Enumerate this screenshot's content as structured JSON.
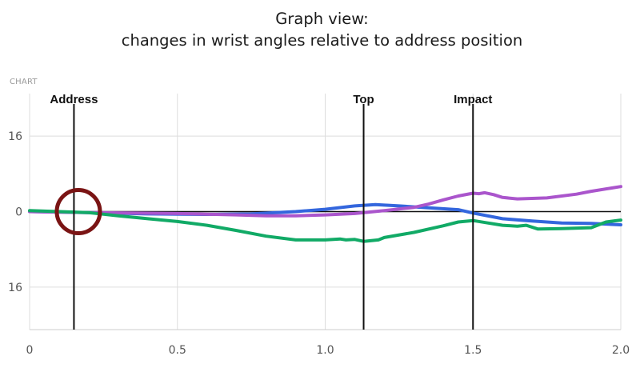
{
  "header": {
    "title_line1": "Graph view:",
    "title_line2": "changes in wrist angles relative to address position"
  },
  "badge": "CHART",
  "chart_data": {
    "type": "line",
    "xlim": [
      0,
      2.0
    ],
    "ylim": [
      -25,
      25
    ],
    "x_ticks": [
      0,
      0.5,
      1.0,
      1.5,
      2.0
    ],
    "x_tick_labels": [
      "0",
      "0.5",
      "1.0",
      "1.5",
      "2.0"
    ],
    "y_ticks": [
      16,
      0,
      -16
    ],
    "y_tick_labels": [
      "16",
      "0",
      "16"
    ],
    "grid": true,
    "markers": [
      {
        "label": "Address",
        "x": 0.15
      },
      {
        "label": "Top",
        "x": 1.13
      },
      {
        "label": "Impact",
        "x": 1.5
      }
    ],
    "highlight_circle": {
      "x": 0.165,
      "y": 0,
      "color": "#7a1414"
    },
    "series": [
      {
        "color": "#3366dd",
        "points": [
          [
            0,
            0
          ],
          [
            0.2,
            -0.2
          ],
          [
            0.4,
            -0.5
          ],
          [
            0.6,
            -0.6
          ],
          [
            0.75,
            -0.5
          ],
          [
            0.9,
            0
          ],
          [
            1.0,
            0.5
          ],
          [
            1.1,
            1.2
          ],
          [
            1.17,
            1.5
          ],
          [
            1.25,
            1.2
          ],
          [
            1.35,
            0.8
          ],
          [
            1.45,
            0.4
          ],
          [
            1.5,
            -0.3
          ],
          [
            1.6,
            -1.5
          ],
          [
            1.7,
            -2.0
          ],
          [
            1.8,
            -2.4
          ],
          [
            1.9,
            -2.5
          ],
          [
            2.0,
            -2.8
          ]
        ]
      },
      {
        "color": "#aa55cc",
        "points": [
          [
            0,
            0
          ],
          [
            0.2,
            -0.2
          ],
          [
            0.5,
            -0.4
          ],
          [
            0.7,
            -0.7
          ],
          [
            0.8,
            -0.9
          ],
          [
            0.9,
            -0.9
          ],
          [
            1.0,
            -0.7
          ],
          [
            1.1,
            -0.4
          ],
          [
            1.2,
            0.2
          ],
          [
            1.3,
            0.9
          ],
          [
            1.35,
            1.6
          ],
          [
            1.4,
            2.5
          ],
          [
            1.45,
            3.3
          ],
          [
            1.5,
            3.9
          ],
          [
            1.52,
            3.8
          ],
          [
            1.54,
            4.0
          ],
          [
            1.57,
            3.6
          ],
          [
            1.6,
            3.0
          ],
          [
            1.65,
            2.7
          ],
          [
            1.75,
            2.9
          ],
          [
            1.85,
            3.7
          ],
          [
            1.9,
            4.3
          ],
          [
            2.0,
            5.3
          ]
        ]
      },
      {
        "color": "#11aa66",
        "points": [
          [
            0,
            0.2
          ],
          [
            0.1,
            0
          ],
          [
            0.2,
            -0.2
          ],
          [
            0.3,
            -0.9
          ],
          [
            0.4,
            -1.5
          ],
          [
            0.5,
            -2.1
          ],
          [
            0.6,
            -2.9
          ],
          [
            0.7,
            -4.0
          ],
          [
            0.8,
            -5.2
          ],
          [
            0.9,
            -6.0
          ],
          [
            1.0,
            -6.0
          ],
          [
            1.05,
            -5.8
          ],
          [
            1.07,
            -6.0
          ],
          [
            1.1,
            -5.9
          ],
          [
            1.13,
            -6.3
          ],
          [
            1.18,
            -6.0
          ],
          [
            1.2,
            -5.5
          ],
          [
            1.3,
            -4.4
          ],
          [
            1.4,
            -3.0
          ],
          [
            1.45,
            -2.2
          ],
          [
            1.5,
            -1.9
          ],
          [
            1.55,
            -2.4
          ],
          [
            1.6,
            -2.9
          ],
          [
            1.65,
            -3.1
          ],
          [
            1.68,
            -2.9
          ],
          [
            1.72,
            -3.7
          ],
          [
            1.8,
            -3.6
          ],
          [
            1.9,
            -3.4
          ],
          [
            1.95,
            -2.2
          ],
          [
            2.0,
            -1.8
          ]
        ]
      }
    ]
  }
}
